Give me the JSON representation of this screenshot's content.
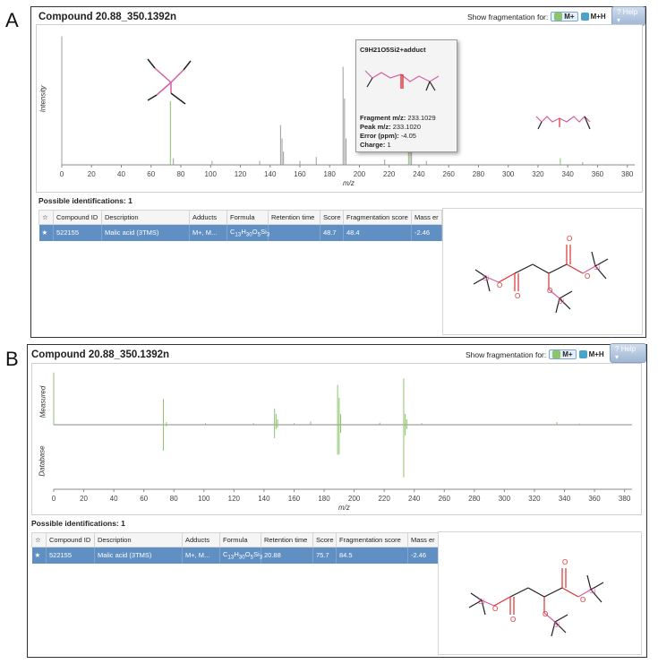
{
  "panels": [
    {
      "letter": "A",
      "title": "Compound 20.88_350.1392n",
      "fragmentation_label": "Show fragmentation for:",
      "mode1": "M+",
      "mode2": "M+H",
      "help": "Help",
      "ylabel": "Intensity",
      "ylabel2": "",
      "xlabel": "m/z",
      "possible": "Possible identifications: 1",
      "columns": [
        "",
        "Compound ID",
        "Description",
        "Adducts",
        "Formula",
        "Retention time",
        "Score",
        "Fragmentation score",
        "Mass er"
      ],
      "row": {
        "star": "★",
        "id": "522155",
        "desc": "Malic acid (3TMS)",
        "adducts": "M+, M...",
        "formula_base": "C",
        "formula_sub1": "13",
        "formula_mid": "H",
        "formula_sub2": "30",
        "formula_o": "O",
        "formula_sub3": "5",
        "formula_si": "Si",
        "formula_sub4": "3",
        "rt": "",
        "score": "48.7",
        "frag_score": "48.4",
        "mass_err": "-2.46"
      },
      "tooltip": {
        "head": "C9H21O5Si2+adduct",
        "lines": [
          {
            "label": "Fragment m/z:",
            "value": "233.1029"
          },
          {
            "label": "Peak m/z:",
            "value": "233.1020"
          },
          {
            "label": "Error (ppm):",
            "value": "-4.05"
          },
          {
            "label": "Charge:",
            "value": "1"
          }
        ]
      }
    },
    {
      "letter": "B",
      "title": "Compound 20.88_350.1392n",
      "fragmentation_label": "Show fragmentation for:",
      "mode1": "M+",
      "mode2": "M+H",
      "help": "Help",
      "ylabel": "Measured",
      "ylabel2": "Database",
      "xlabel": "m/z",
      "possible": "Possible identifications: 1",
      "columns": [
        "",
        "Compound ID",
        "Description",
        "Adducts",
        "Formula",
        "Retention time",
        "Score",
        "Fragmentation score",
        "Mass er"
      ],
      "row": {
        "star": "★",
        "id": "522155",
        "desc": "Malic acid (3TMS)",
        "adducts": "M+, M...",
        "formula_base": "C",
        "formula_sub1": "13",
        "formula_mid": "H",
        "formula_sub2": "30",
        "formula_o": "O",
        "formula_sub3": "5",
        "formula_si": "Si",
        "formula_sub4": "3",
        "rt": "20.88",
        "score": "75.7",
        "frag_score": "84.5",
        "mass_err": "-2.46"
      }
    }
  ],
  "colors": {
    "peak": "#9c9c9c",
    "match": "#8cc36b",
    "accent": "#5f8fc3",
    "bond_o": "#e03030",
    "bond_si": "#d45fa0"
  },
  "chart_data": [
    {
      "type": "bar",
      "xlabel": "m/z",
      "ylabel": "Intensity",
      "xlim": [
        0,
        385
      ],
      "xticks": [
        0,
        20,
        40,
        60,
        80,
        100,
        120,
        140,
        160,
        180,
        200,
        220,
        240,
        260,
        280,
        300,
        320,
        340,
        360,
        380
      ],
      "series": [
        {
          "name": "",
          "points": [
            [
              0,
              0.97
            ],
            [
              73,
              0.48
            ],
            [
              75,
              0.05
            ],
            [
              101,
              0.03
            ],
            [
              133,
              0.03
            ],
            [
              147,
              0.3
            ],
            [
              148,
              0.2
            ],
            [
              149,
              0.1
            ],
            [
              160,
              0.03
            ],
            [
              171,
              0.06
            ],
            [
              189,
              0.74
            ],
            [
              190,
              0.5
            ],
            [
              191,
              0.2
            ],
            [
              217,
              0.04
            ],
            [
              233,
              0.86
            ],
            [
              234,
              0.2
            ],
            [
              235,
              0.1
            ],
            [
              245,
              0.03
            ],
            [
              335,
              0.05
            ],
            [
              350,
              0.02
            ]
          ]
        }
      ],
      "matched": [
        73,
        233,
        335
      ]
    },
    {
      "type": "bar",
      "xlabel": "m/z",
      "ylabel": "Measured",
      "xlim": [
        0,
        385
      ],
      "xticks": [
        0,
        20,
        40,
        60,
        80,
        100,
        120,
        140,
        160,
        180,
        200,
        220,
        240,
        260,
        280,
        300,
        320,
        340,
        360,
        380
      ],
      "series": [
        {
          "name": "Measured",
          "points": [
            [
              0,
              0.97
            ],
            [
              73,
              0.48
            ],
            [
              75,
              0.05
            ],
            [
              101,
              0.03
            ],
            [
              133,
              0.03
            ],
            [
              147,
              0.3
            ],
            [
              148,
              0.2
            ],
            [
              149,
              0.1
            ],
            [
              160,
              0.03
            ],
            [
              171,
              0.06
            ],
            [
              189,
              0.74
            ],
            [
              190,
              0.5
            ],
            [
              191,
              0.2
            ],
            [
              217,
              0.04
            ],
            [
              233,
              0.86
            ],
            [
              234,
              0.2
            ],
            [
              235,
              0.1
            ],
            [
              245,
              0.03
            ],
            [
              335,
              0.05
            ],
            [
              350,
              0.02
            ]
          ]
        },
        {
          "name": "Database",
          "points": [
            [
              73,
              0.48
            ],
            [
              75,
              0.03
            ],
            [
              147,
              0.25
            ],
            [
              148,
              0.08
            ],
            [
              149,
              0.05
            ],
            [
              189,
              0.56
            ],
            [
              190,
              0.55
            ],
            [
              191,
              0.15
            ],
            [
              233,
              0.98
            ],
            [
              234,
              0.2
            ],
            [
              235,
              0.08
            ]
          ]
        }
      ]
    }
  ]
}
